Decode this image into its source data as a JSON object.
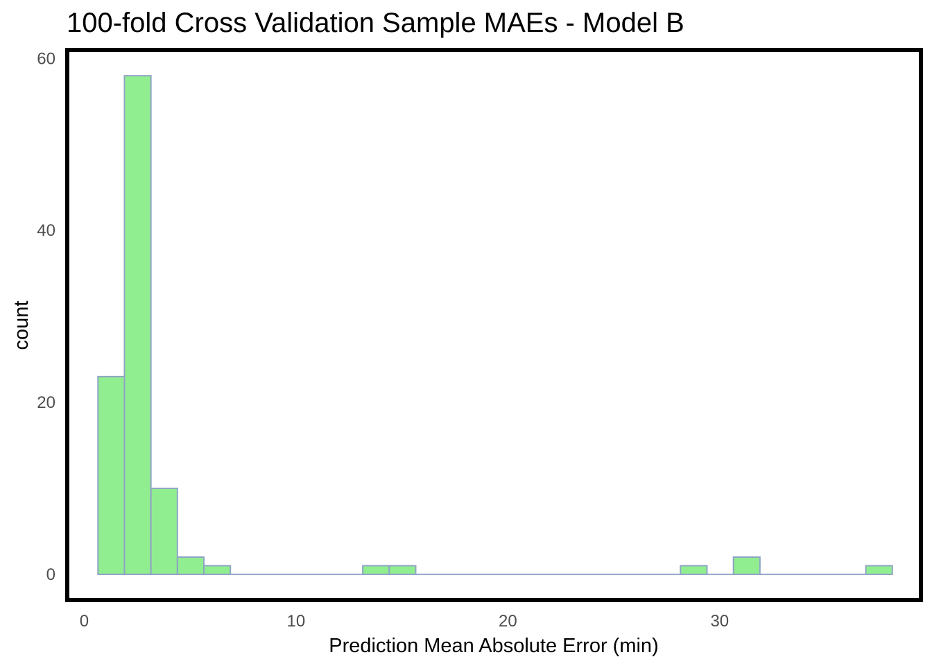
{
  "chart_data": {
    "type": "bar",
    "title": "100-fold Cross Validation Sample MAEs - Model B",
    "xlabel": "Prediction Mean Absolute Error (min)",
    "ylabel": "count",
    "xlim": [
      -0.8,
      39.5
    ],
    "ylim": [
      -3.0,
      61.0
    ],
    "x_ticks": [
      0,
      10,
      20,
      30
    ],
    "y_ticks": [
      0,
      20,
      40,
      60
    ],
    "x_tick_labels": [
      "0",
      "10",
      "20",
      "30"
    ],
    "y_tick_labels": [
      "0",
      "20",
      "40",
      "60"
    ],
    "bin_width": 1.25,
    "bins": [
      {
        "start": 0.65,
        "end": 1.9,
        "count": 23
      },
      {
        "start": 1.9,
        "end": 3.15,
        "count": 58
      },
      {
        "start": 3.15,
        "end": 4.4,
        "count": 10
      },
      {
        "start": 4.4,
        "end": 5.65,
        "count": 2
      },
      {
        "start": 5.65,
        "end": 6.9,
        "count": 1
      },
      {
        "start": 6.9,
        "end": 8.15,
        "count": 0
      },
      {
        "start": 8.15,
        "end": 9.4,
        "count": 0
      },
      {
        "start": 9.4,
        "end": 10.65,
        "count": 0
      },
      {
        "start": 10.65,
        "end": 11.9,
        "count": 0
      },
      {
        "start": 11.9,
        "end": 13.15,
        "count": 0
      },
      {
        "start": 13.15,
        "end": 14.4,
        "count": 1
      },
      {
        "start": 14.4,
        "end": 15.65,
        "count": 1
      },
      {
        "start": 15.65,
        "end": 16.9,
        "count": 0
      },
      {
        "start": 16.9,
        "end": 18.15,
        "count": 0
      },
      {
        "start": 18.15,
        "end": 19.4,
        "count": 0
      },
      {
        "start": 19.4,
        "end": 20.65,
        "count": 0
      },
      {
        "start": 20.65,
        "end": 21.9,
        "count": 0
      },
      {
        "start": 21.9,
        "end": 23.15,
        "count": 0
      },
      {
        "start": 23.15,
        "end": 24.4,
        "count": 0
      },
      {
        "start": 24.4,
        "end": 25.65,
        "count": 0
      },
      {
        "start": 25.65,
        "end": 26.9,
        "count": 0
      },
      {
        "start": 26.9,
        "end": 28.15,
        "count": 0
      },
      {
        "start": 28.15,
        "end": 29.4,
        "count": 1
      },
      {
        "start": 29.4,
        "end": 30.65,
        "count": 0
      },
      {
        "start": 30.65,
        "end": 31.9,
        "count": 2
      },
      {
        "start": 31.9,
        "end": 33.15,
        "count": 0
      },
      {
        "start": 33.15,
        "end": 34.4,
        "count": 0
      },
      {
        "start": 34.4,
        "end": 35.65,
        "count": 0
      },
      {
        "start": 35.65,
        "end": 36.9,
        "count": 0
      },
      {
        "start": 36.9,
        "end": 38.15,
        "count": 1
      }
    ],
    "grid": false,
    "legend": "none",
    "colors": {
      "bar_fill": "#90ee90",
      "bar_stroke": "#8fa4c4",
      "panel_border": "#000000",
      "tick_text": "#4d4d4d",
      "title_text": "#000000"
    }
  }
}
